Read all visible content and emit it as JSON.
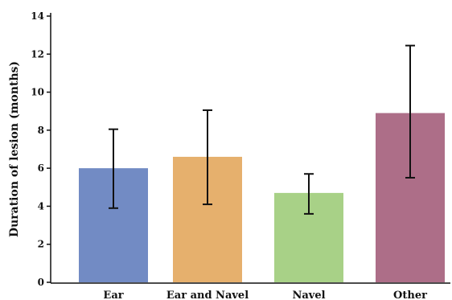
{
  "chart_data": {
    "type": "bar",
    "title": "",
    "xlabel": "",
    "ylabel": "Duration of lesion (months)",
    "ylim": [
      0,
      14
    ],
    "yticks": [
      0,
      2,
      4,
      6,
      8,
      10,
      12,
      14
    ],
    "grid": false,
    "categories": [
      "Ear",
      "Ear and Navel",
      "Navel",
      "Other"
    ],
    "values": [
      6.0,
      6.6,
      4.7,
      8.9
    ],
    "error_low": [
      3.9,
      4.1,
      3.6,
      5.5
    ],
    "error_high": [
      8.05,
      9.05,
      5.7,
      12.45
    ],
    "colors": [
      "#728bc4",
      "#e6b06d",
      "#a8d187",
      "#ad6e88"
    ]
  }
}
